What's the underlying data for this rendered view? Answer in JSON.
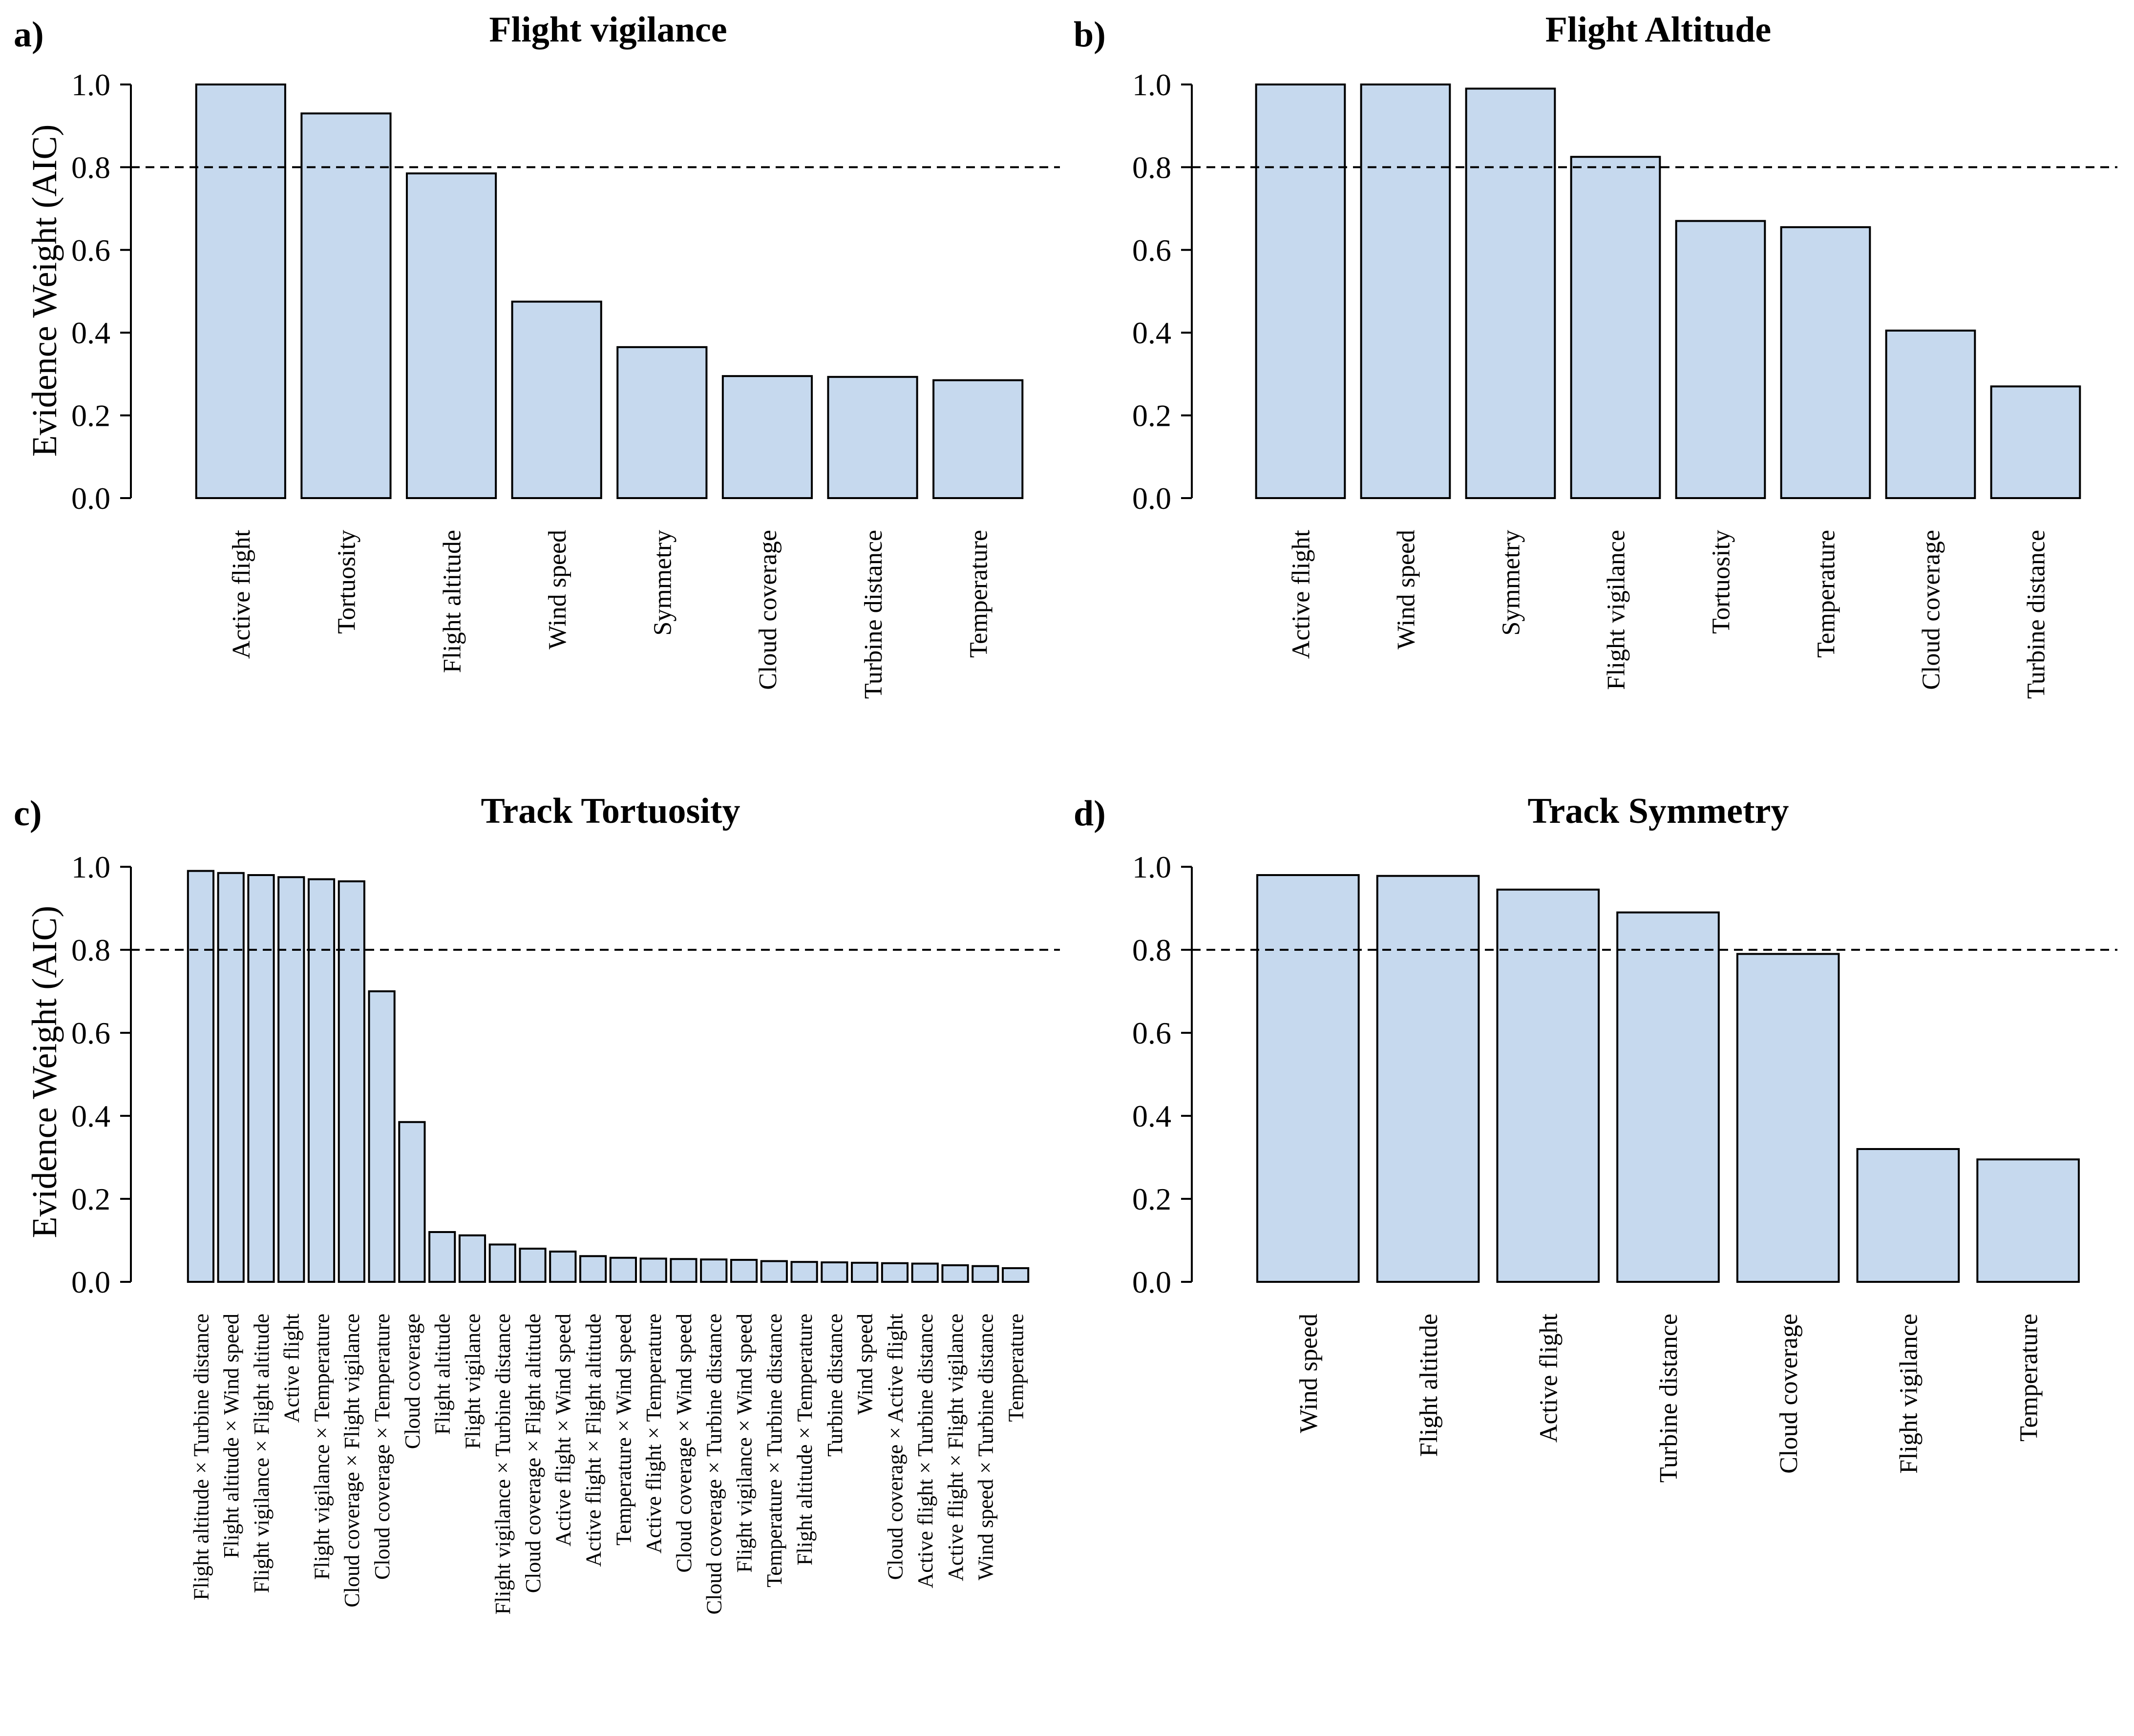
{
  "figure": {
    "colors": {
      "bar_fill": "#c6d9ee",
      "bar_stroke": "#000000",
      "ref_line": "#000000"
    }
  },
  "chart_data": [
    {
      "panel": "a)",
      "type": "bar",
      "title": "Flight vigilance",
      "ylabel": "Evidence Weight (AIC)",
      "ylim": [
        0,
        1
      ],
      "yticks": [
        "0.0",
        "0.2",
        "0.4",
        "0.6",
        "0.8",
        "1.0"
      ],
      "reference_line": 0.8,
      "categories": [
        "Active flight",
        "Tortuosity",
        "Flight altitude",
        "Wind speed",
        "Symmetry",
        "Cloud coverage",
        "Turbine distance",
        "Temperature"
      ],
      "values": [
        1.0,
        0.93,
        0.785,
        0.475,
        0.365,
        0.295,
        0.293,
        0.285
      ]
    },
    {
      "panel": "b)",
      "type": "bar",
      "title": "Flight Altitude",
      "ylabel": "",
      "ylim": [
        0,
        1
      ],
      "yticks": [
        "0.0",
        "0.2",
        "0.4",
        "0.6",
        "0.8",
        "1.0"
      ],
      "reference_line": 0.8,
      "categories": [
        "Active flight",
        "Wind speed",
        "Symmetry",
        "Flight vigilance",
        "Tortuosity",
        "Temperature",
        "Cloud coverage",
        "Turbine distance"
      ],
      "values": [
        1.0,
        1.0,
        0.99,
        0.825,
        0.67,
        0.655,
        0.405,
        0.27
      ]
    },
    {
      "panel": "c)",
      "type": "bar",
      "title": "Track Tortuosity",
      "ylabel": "Evidence Weight (AIC)",
      "ylim": [
        0,
        1
      ],
      "yticks": [
        "0.0",
        "0.2",
        "0.4",
        "0.6",
        "0.8",
        "1.0"
      ],
      "reference_line": 0.8,
      "categories": [
        "Flight altitude × Turbine distance",
        "Flight altitude × Wind speed",
        "Flight vigilance × Flight altitude",
        "Active flight",
        "Flight vigilance × Temperature",
        "Cloud coverage × Flight vigilance",
        "Cloud coverage × Temperature",
        "Cloud coverage",
        "Flight altitude",
        "Flight vigilance",
        "Flight vigilance × Turbine distance",
        "Cloud coverage × Flight altitude",
        "Active flight × Wind speed",
        "Active flight × Flight altitude",
        "Temperature × Wind speed",
        "Active flight × Temperature",
        "Cloud coverage × Wind speed",
        "Cloud coverage × Turbine distance",
        "Flight vigilance × Wind speed",
        "Temperature × Turbine distance",
        "Flight altitude × Temperature",
        "Turbine distance",
        "Wind speed",
        "Cloud coverage × Active flight",
        "Active flight × Turbine distance",
        "Active flight × Flight vigilance",
        "Wind speed × Turbine distance",
        "Temperature"
      ],
      "values": [
        0.99,
        0.985,
        0.98,
        0.975,
        0.97,
        0.965,
        0.7,
        0.385,
        0.12,
        0.112,
        0.09,
        0.08,
        0.073,
        0.062,
        0.058,
        0.056,
        0.055,
        0.054,
        0.053,
        0.05,
        0.048,
        0.047,
        0.046,
        0.045,
        0.044,
        0.04,
        0.038,
        0.033
      ]
    },
    {
      "panel": "d)",
      "type": "bar",
      "title": "Track Symmetry",
      "ylabel": "",
      "ylim": [
        0,
        1
      ],
      "yticks": [
        "0.0",
        "0.2",
        "0.4",
        "0.6",
        "0.8",
        "1.0"
      ],
      "reference_line": 0.8,
      "categories": [
        "Wind speed",
        "Flight altitude",
        "Active flight",
        "Turbine distance",
        "Cloud coverage",
        "Flight vigilance",
        "Temperature"
      ],
      "values": [
        0.98,
        0.978,
        0.945,
        0.89,
        0.79,
        0.32,
        0.295
      ]
    }
  ]
}
